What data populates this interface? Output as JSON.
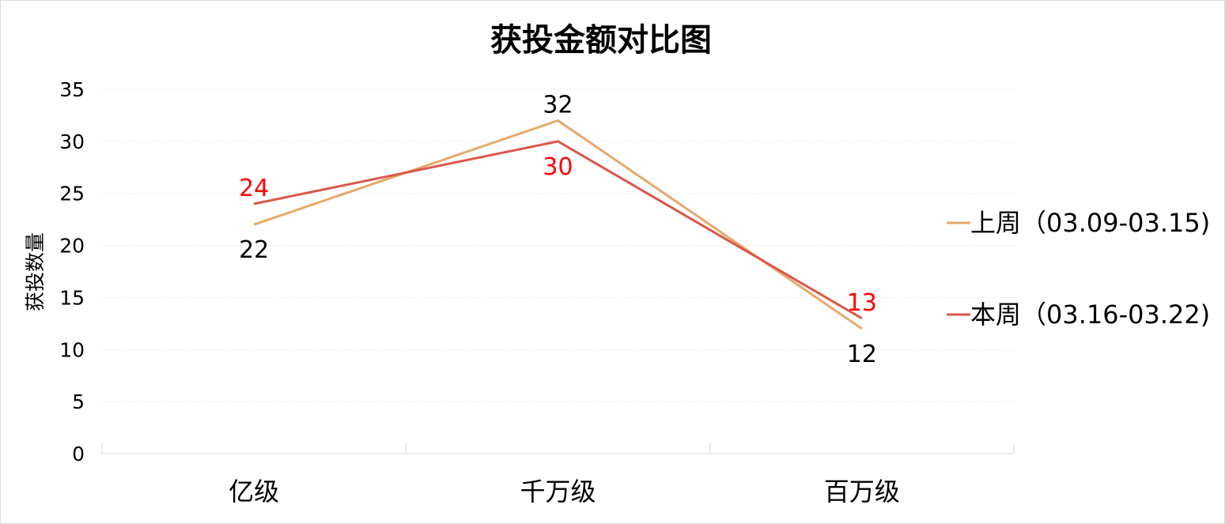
{
  "chart_data": {
    "type": "line",
    "title": "获投金额对比图",
    "ylabel": "获投数量",
    "xlabel": "",
    "categories": [
      "亿级",
      "千万级",
      "百万级"
    ],
    "ylim": [
      0,
      35
    ],
    "yticks": [
      0,
      5,
      10,
      15,
      20,
      25,
      30,
      35
    ],
    "grid": true,
    "legend_position": "right",
    "series": [
      {
        "name": "上周（03.09-03.15)",
        "values": [
          22,
          32,
          12
        ],
        "color": "#e5a96a",
        "label_color": "#000000",
        "label_placement": [
          "below",
          "above",
          "below"
        ]
      },
      {
        "name": "本周（03.16-03.22)",
        "values": [
          24,
          30,
          13
        ],
        "color": "#d9574a",
        "label_color": "#ff0000",
        "label_placement": [
          "above",
          "below",
          "above"
        ]
      }
    ]
  }
}
